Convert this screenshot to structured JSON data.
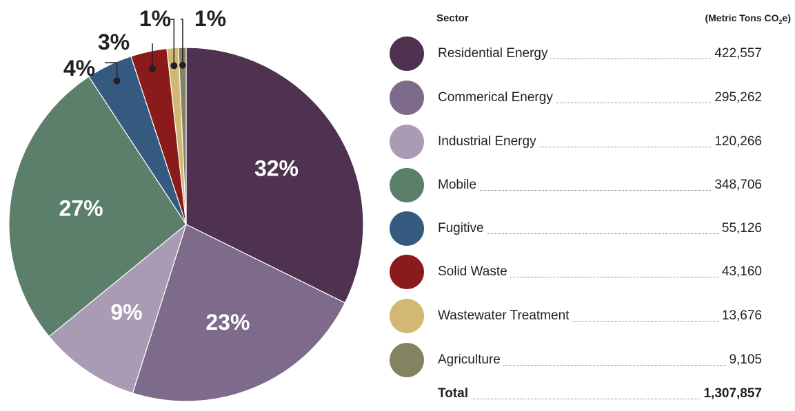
{
  "chart_data": {
    "type": "pie",
    "table_header": {
      "sector": "Sector",
      "units_prefix": "(Metric Tons CO",
      "units_sub": "2",
      "units_suffix": "e)"
    },
    "slices": [
      {
        "label": "Residential Energy",
        "value": 422557,
        "percent_label": "32%",
        "color": "#4e3250",
        "label_color": "#ffffff",
        "label_pos": "inside"
      },
      {
        "label": "Commerical Energy",
        "value": 295262,
        "percent_label": "23%",
        "color": "#7e6a8a",
        "label_color": "#ffffff",
        "label_pos": "inside"
      },
      {
        "label": "Industrial Energy",
        "value": 120266,
        "percent_label": "9%",
        "color": "#a99bb4",
        "label_color": "#ffffff",
        "label_pos": "inside"
      },
      {
        "label": "Mobile",
        "value": 348706,
        "percent_label": "27%",
        "color": "#5b7f6a",
        "label_color": "#ffffff",
        "label_pos": "inside"
      },
      {
        "label": "Fugitive",
        "value": 55126,
        "percent_label": "4%",
        "color": "#355a80",
        "label_color": "#231f20",
        "label_pos": "outside"
      },
      {
        "label": "Solid Waste",
        "value": 43160,
        "percent_label": "3%",
        "color": "#8b1a1a",
        "label_color": "#231f20",
        "label_pos": "outside"
      },
      {
        "label": "Wastewater Treatment",
        "value": 13676,
        "percent_label": "1%",
        "color": "#d2b872",
        "label_color": "#231f20",
        "label_pos": "outside"
      },
      {
        "label": "Agriculture",
        "value": 9105,
        "percent_label": "1%",
        "color": "#838263",
        "label_color": "#231f20",
        "label_pos": "outside"
      }
    ],
    "table_values": [
      "422,557",
      "295,262",
      "120,266",
      "348,706",
      "55,126",
      "43,160",
      "13,676",
      "9,105"
    ],
    "total": {
      "label": "Total",
      "value": 1307857,
      "display": "1,307,857"
    },
    "legend": "right"
  }
}
